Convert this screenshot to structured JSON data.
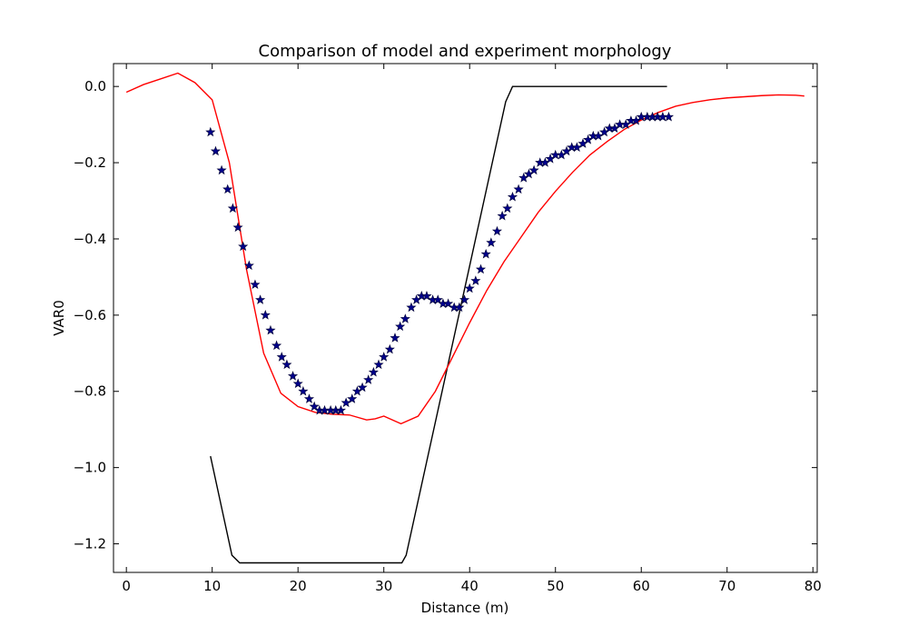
{
  "chart_data": {
    "type": "line",
    "title": "Comparison of model and experiment morphology",
    "xlabel": "Distance (m)",
    "ylabel": "VAR0",
    "xlim": [
      -1.5,
      80.5
    ],
    "ylim": [
      -1.275,
      0.06
    ],
    "xticks": [
      0,
      10,
      20,
      30,
      40,
      50,
      60,
      70,
      80
    ],
    "yticks": [
      0.0,
      -0.2,
      -0.4,
      -0.6,
      -0.8,
      -1.0,
      -1.2
    ],
    "xtick_labels": [
      "0",
      "10",
      "20",
      "30",
      "40",
      "50",
      "60",
      "70",
      "80"
    ],
    "ytick_labels": [
      "0.0",
      "−0.2",
      "−0.4",
      "−0.6",
      "−0.8",
      "−1.0",
      "−1.2"
    ],
    "grid": false,
    "series": [
      {
        "style": "line",
        "color": "#000000",
        "x": [
          9.8,
          12.3,
          13.2,
          32.1,
          32.6,
          44.2,
          45.0,
          63.0
        ],
        "y": [
          -0.97,
          -1.23,
          -1.25,
          -1.25,
          -1.23,
          -0.04,
          0.0,
          0.0
        ]
      },
      {
        "style": "line",
        "color": "#ff0000",
        "x": [
          0,
          2,
          4,
          6,
          8,
          10,
          12,
          14,
          16,
          18,
          20,
          22,
          24,
          26,
          28,
          29,
          30,
          32,
          34,
          36,
          38,
          40,
          42,
          44,
          46,
          48,
          50,
          52,
          54,
          56,
          58,
          60,
          62,
          64,
          66,
          68,
          70,
          72,
          74,
          76,
          78,
          79
        ],
        "y": [
          -0.015,
          0.005,
          0.02,
          0.035,
          0.01,
          -0.035,
          -0.2,
          -0.48,
          -0.7,
          -0.805,
          -0.84,
          -0.855,
          -0.86,
          -0.862,
          -0.875,
          -0.872,
          -0.865,
          -0.885,
          -0.865,
          -0.8,
          -0.71,
          -0.62,
          -0.535,
          -0.46,
          -0.395,
          -0.33,
          -0.275,
          -0.225,
          -0.18,
          -0.145,
          -0.113,
          -0.088,
          -0.068,
          -0.052,
          -0.042,
          -0.035,
          -0.03,
          -0.027,
          -0.024,
          -0.022,
          -0.023,
          -0.025
        ]
      },
      {
        "style": "markers",
        "marker": "star",
        "color": "#00008b",
        "x": [
          9.8,
          10.4,
          11.1,
          11.8,
          12.4,
          13.0,
          13.6,
          14.3,
          15.0,
          15.6,
          16.2,
          16.8,
          17.5,
          18.1,
          18.7,
          19.4,
          20.0,
          20.6,
          21.3,
          21.9,
          22.5,
          23.1,
          23.8,
          24.4,
          25.0,
          25.6,
          26.3,
          26.9,
          27.5,
          28.2,
          28.8,
          29.4,
          30.0,
          30.7,
          31.3,
          31.9,
          32.5,
          33.2,
          33.8,
          34.4,
          35.0,
          35.7,
          36.3,
          36.9,
          37.5,
          38.2,
          38.8,
          39.4,
          40.0,
          40.7,
          41.3,
          41.9,
          42.5,
          43.2,
          43.8,
          44.4,
          45.0,
          45.7,
          46.3,
          46.9,
          47.5,
          48.2,
          48.8,
          49.4,
          50.0,
          50.7,
          51.3,
          51.9,
          52.5,
          53.2,
          53.8,
          54.4,
          55.0,
          55.7,
          56.3,
          56.9,
          57.5,
          58.2,
          58.8,
          59.4,
          60.0,
          60.7,
          61.3,
          61.9,
          62.5,
          63.2
        ],
        "y": [
          -0.12,
          -0.17,
          -0.22,
          -0.27,
          -0.32,
          -0.37,
          -0.42,
          -0.47,
          -0.52,
          -0.56,
          -0.6,
          -0.64,
          -0.68,
          -0.71,
          -0.73,
          -0.76,
          -0.78,
          -0.8,
          -0.82,
          -0.84,
          -0.85,
          -0.85,
          -0.85,
          -0.85,
          -0.85,
          -0.83,
          -0.82,
          -0.8,
          -0.79,
          -0.77,
          -0.75,
          -0.73,
          -0.71,
          -0.69,
          -0.66,
          -0.63,
          -0.61,
          -0.58,
          -0.56,
          -0.55,
          -0.55,
          -0.56,
          -0.56,
          -0.57,
          -0.57,
          -0.58,
          -0.58,
          -0.56,
          -0.53,
          -0.51,
          -0.48,
          -0.44,
          -0.41,
          -0.38,
          -0.34,
          -0.32,
          -0.29,
          -0.27,
          -0.24,
          -0.23,
          -0.22,
          -0.2,
          -0.2,
          -0.19,
          -0.18,
          -0.18,
          -0.17,
          -0.16,
          -0.16,
          -0.15,
          -0.14,
          -0.13,
          -0.13,
          -0.12,
          -0.11,
          -0.11,
          -0.1,
          -0.1,
          -0.09,
          -0.09,
          -0.08,
          -0.08,
          -0.08,
          -0.08,
          -0.08,
          -0.08
        ]
      }
    ]
  }
}
